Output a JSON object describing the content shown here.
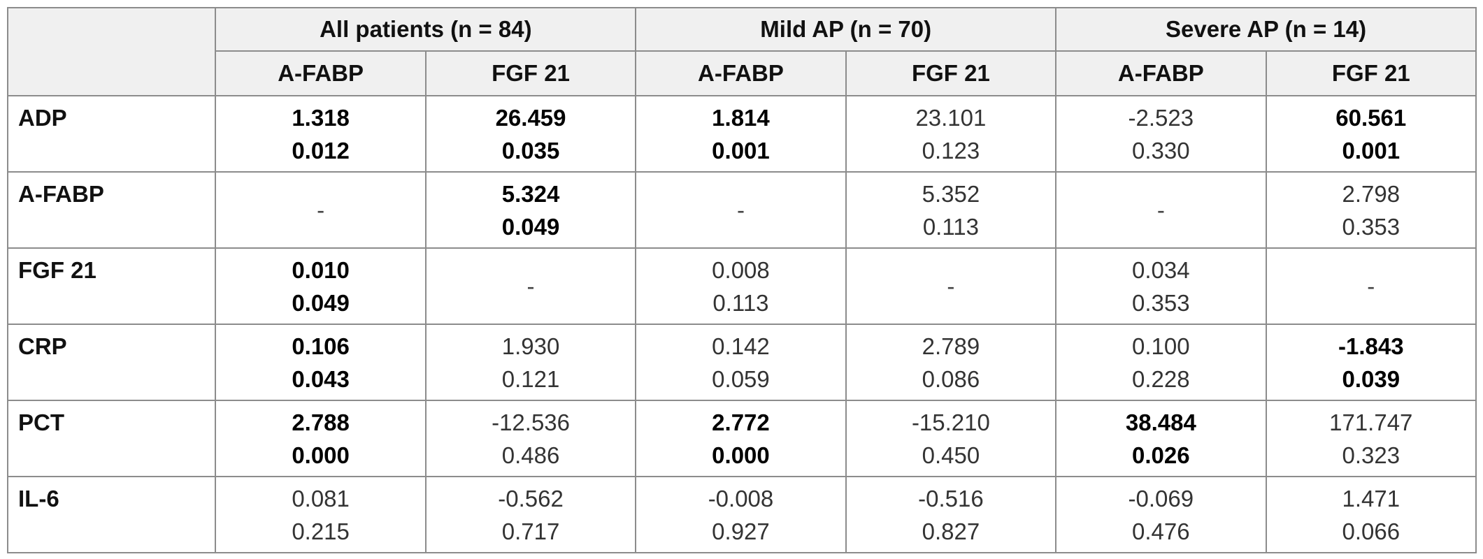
{
  "groups": [
    {
      "label": "All patients (n = 84)"
    },
    {
      "label": "Mild AP (n = 70)"
    },
    {
      "label": "Severe AP (n = 14)"
    }
  ],
  "subheaders": [
    "A-FABP",
    "FGF 21",
    "A-FABP",
    "FGF 21",
    "A-FABP",
    "FGF 21"
  ],
  "rows": [
    {
      "label": "ADP",
      "cells": [
        {
          "coef": "1.318",
          "p": "0.012",
          "bold": true
        },
        {
          "coef": "26.459",
          "p": "0.035",
          "bold": true
        },
        {
          "coef": "1.814",
          "p": "0.001",
          "bold": true
        },
        {
          "coef": "23.101",
          "p": "0.123",
          "bold": false
        },
        {
          "coef": "-2.523",
          "p": "0.330",
          "bold": false
        },
        {
          "coef": "60.561",
          "p": "0.001",
          "bold": true
        }
      ]
    },
    {
      "label": "A-FABP",
      "cells": [
        {
          "dash": "-"
        },
        {
          "coef": "5.324",
          "p": "0.049",
          "bold": true
        },
        {
          "dash": "-"
        },
        {
          "coef": "5.352",
          "p": "0.113",
          "bold": false
        },
        {
          "dash": "-"
        },
        {
          "coef": "2.798",
          "p": "0.353",
          "bold": false
        }
      ]
    },
    {
      "label": "FGF 21",
      "cells": [
        {
          "coef": "0.010",
          "p": "0.049",
          "bold": true
        },
        {
          "dash": "-"
        },
        {
          "coef": "0.008",
          "p": "0.113",
          "bold": false
        },
        {
          "dash": "-"
        },
        {
          "coef": "0.034",
          "p": "0.353",
          "bold": false
        },
        {
          "dash": "-"
        }
      ]
    },
    {
      "label": "CRP",
      "cells": [
        {
          "coef": "0.106",
          "p": "0.043",
          "bold": true
        },
        {
          "coef": "1.930",
          "p": "0.121",
          "bold": false
        },
        {
          "coef": "0.142",
          "p": "0.059",
          "bold": false
        },
        {
          "coef": "2.789",
          "p": "0.086",
          "bold": false
        },
        {
          "coef": "0.100",
          "p": "0.228",
          "bold": false
        },
        {
          "coef": "-1.843",
          "p": "0.039",
          "bold": true
        }
      ]
    },
    {
      "label": "PCT",
      "cells": [
        {
          "coef": "2.788",
          "p": "0.000",
          "bold": true
        },
        {
          "coef": "-12.536",
          "p": "0.486",
          "bold": false
        },
        {
          "coef": "2.772",
          "p": "0.000",
          "bold": true
        },
        {
          "coef": "-15.210",
          "p": "0.450",
          "bold": false
        },
        {
          "coef": "38.484",
          "p": "0.026",
          "bold": true
        },
        {
          "coef": "171.747",
          "p": "0.323",
          "bold": false
        }
      ]
    },
    {
      "label": "IL-6",
      "cells": [
        {
          "coef": "0.081",
          "p": "0.215",
          "bold": false
        },
        {
          "coef": "-0.562",
          "p": "0.717",
          "bold": false
        },
        {
          "coef": "-0.008",
          "p": "0.927",
          "bold": false
        },
        {
          "coef": "-0.516",
          "p": "0.827",
          "bold": false
        },
        {
          "coef": "-0.069",
          "p": "0.476",
          "bold": false
        },
        {
          "coef": "1.471",
          "p": "0.066",
          "bold": false
        }
      ]
    }
  ]
}
